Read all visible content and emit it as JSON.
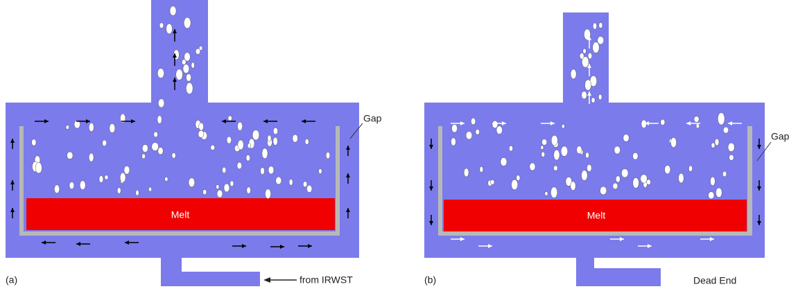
{
  "panels": [
    {
      "label": "(a)",
      "melt": "Melt",
      "gap": "Gap",
      "inlet": "from IRWST"
    },
    {
      "label": "(b)",
      "melt": "Melt",
      "gap": "Gap",
      "inlet": "Dead End"
    }
  ]
}
